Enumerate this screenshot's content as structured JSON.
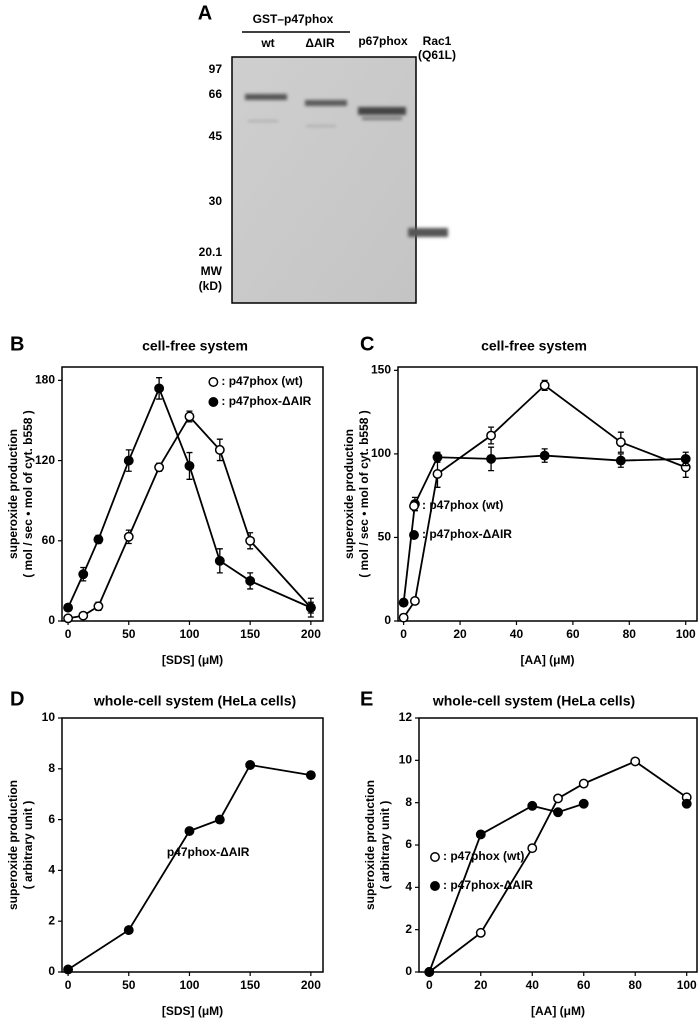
{
  "gel": {
    "label": "A",
    "group_label": "GST–p47phox",
    "lanes": [
      "wt",
      "ΔAIR",
      "p67phox",
      "Rac1"
    ],
    "lane_note": "(Q61L)",
    "markers": [
      97,
      66,
      45,
      30,
      20.1
    ],
    "marker_unit": [
      "MW",
      "(kD)"
    ]
  },
  "chart_data": [
    {
      "type": "line",
      "panel": "B",
      "title": "cell-free system",
      "xlabel": "[SDS]  (μM)",
      "ylabel": [
        "superoxide production",
        "( mol / sec • mol of cyt. b558 )"
      ],
      "xlim": [
        -5,
        210
      ],
      "xticks": [
        0,
        50,
        100,
        150,
        200
      ],
      "ylim": [
        0,
        190
      ],
      "yticks": [
        0,
        60,
        120,
        180
      ],
      "legend": "upper right",
      "x": [
        0,
        12.5,
        25,
        50,
        75,
        100,
        125,
        150,
        200
      ],
      "series": [
        {
          "name": ": p47phox (wt)",
          "color": "#000000",
          "marker": "open",
          "values": [
            2,
            4,
            11,
            63,
            115,
            153,
            128,
            60,
            10
          ],
          "errors": [
            1,
            2,
            3,
            5,
            3,
            4,
            8,
            6,
            4
          ]
        },
        {
          "name": ": p47phox-ΔAIR",
          "color": "#000000",
          "marker": "filled",
          "values": [
            10,
            35,
            61,
            120,
            174,
            116,
            45,
            30,
            10
          ],
          "errors": [
            2,
            5,
            3,
            8,
            8,
            10,
            9,
            6,
            7
          ]
        }
      ]
    },
    {
      "type": "line",
      "panel": "C",
      "title": "cell-free system",
      "xlabel": "[AA]  (μM)",
      "ylabel": [
        "superoxide production",
        "( mol / sec • mol of cyt. b558 )"
      ],
      "xlim": [
        -2,
        104
      ],
      "xticks": [
        0,
        20,
        40,
        60,
        80,
        100
      ],
      "ylim": [
        0,
        152
      ],
      "yticks": [
        0,
        50,
        100,
        150
      ],
      "legend": "lower left",
      "x": [
        0,
        4,
        12,
        31,
        50,
        77,
        100
      ],
      "series": [
        {
          "name": ": p47phox (wt)",
          "color": "#000000",
          "marker": "open",
          "values": [
            2,
            12,
            88,
            111,
            141,
            107,
            92
          ],
          "errors": [
            2,
            2,
            8,
            5,
            3,
            6,
            6
          ]
        },
        {
          "name": ": p47phox-ΔAIR",
          "color": "#000000",
          "marker": "filled",
          "values": [
            11,
            70,
            98,
            97,
            99,
            96,
            97
          ],
          "errors": [
            2,
            4,
            3,
            7,
            4,
            4,
            4
          ]
        }
      ]
    },
    {
      "type": "line",
      "panel": "D",
      "title": "whole-cell system (HeLa cells)",
      "xlabel": "[SDS]  (μM)",
      "ylabel": [
        "superoxide production",
        "( arbitrary unit )"
      ],
      "annotation": "p47phox-ΔAIR",
      "xlim": [
        -5,
        210
      ],
      "xticks": [
        0,
        50,
        100,
        150,
        200
      ],
      "ylim": [
        0,
        10
      ],
      "yticks": [
        0,
        2,
        4,
        6,
        8,
        10
      ],
      "x": [
        0,
        50,
        100,
        125,
        150,
        200
      ],
      "series": [
        {
          "color": "#000000",
          "marker": "filled",
          "values": [
            0.1,
            1.65,
            5.55,
            6.0,
            8.15,
            7.75
          ]
        }
      ]
    },
    {
      "type": "line",
      "panel": "E",
      "title": "whole-cell system (HeLa cells)",
      "xlabel": "[AA]  (μM)",
      "ylabel": [
        "superoxide production",
        "( arbitrary unit )"
      ],
      "xlim": [
        -4,
        104
      ],
      "xticks": [
        0,
        20,
        40,
        60,
        80,
        100
      ],
      "ylim": [
        0,
        12
      ],
      "yticks": [
        0,
        2,
        4,
        6,
        8,
        10,
        12
      ],
      "legend": "lower left",
      "x": [
        0,
        20,
        40,
        50,
        60,
        80,
        100
      ],
      "series": [
        {
          "name": ": p47phox (wt)",
          "color": "#000000",
          "marker": "open",
          "values": [
            0,
            1.85,
            5.85,
            8.2,
            8.9,
            9.95,
            8.25
          ]
        },
        {
          "name": ": p47phox-ΔAIR",
          "color": "#000000",
          "marker": "filled",
          "values": [
            0,
            6.5,
            7.85,
            7.55,
            7.95,
            null,
            7.95
          ]
        }
      ]
    }
  ]
}
